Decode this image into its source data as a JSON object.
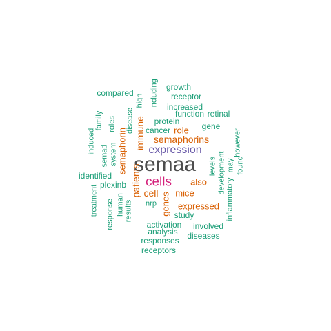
{
  "palette": {
    "grey": "#4d4d4d",
    "magenta": "#d4227c",
    "purple": "#6a5aa8",
    "orange": "#d95f02",
    "green": "#1b9e77"
  },
  "words": [
    {
      "text": "semaa",
      "color": "grey"
    },
    {
      "text": "cells",
      "color": "magenta"
    },
    {
      "text": "expression",
      "color": "purple"
    },
    {
      "text": "semaphorins",
      "color": "orange"
    },
    {
      "text": "patients",
      "color": "orange"
    },
    {
      "text": "immune",
      "color": "orange"
    },
    {
      "text": "semaphorin",
      "color": "orange"
    },
    {
      "text": "genes",
      "color": "orange"
    },
    {
      "text": "cell",
      "color": "orange"
    },
    {
      "text": "mice",
      "color": "orange"
    },
    {
      "text": "role",
      "color": "orange"
    },
    {
      "text": "also",
      "color": "orange"
    },
    {
      "text": "expressed",
      "color": "orange"
    },
    {
      "text": "growth",
      "color": "green"
    },
    {
      "text": "compared",
      "color": "green"
    },
    {
      "text": "receptor",
      "color": "green"
    },
    {
      "text": "including",
      "color": "green"
    },
    {
      "text": "high",
      "color": "green"
    },
    {
      "text": "increased",
      "color": "green"
    },
    {
      "text": "function",
      "color": "green"
    },
    {
      "text": "retinal",
      "color": "green"
    },
    {
      "text": "disease",
      "color": "green"
    },
    {
      "text": "family",
      "color": "green"
    },
    {
      "text": "roles",
      "color": "green"
    },
    {
      "text": "protein",
      "color": "green"
    },
    {
      "text": "gene",
      "color": "green"
    },
    {
      "text": "cancer",
      "color": "green"
    },
    {
      "text": "induced",
      "color": "green"
    },
    {
      "text": "system",
      "color": "green"
    },
    {
      "text": "semad",
      "color": "green"
    },
    {
      "text": "however",
      "color": "green"
    },
    {
      "text": "levels",
      "color": "green"
    },
    {
      "text": "development",
      "color": "green"
    },
    {
      "text": "found",
      "color": "green"
    },
    {
      "text": "may",
      "color": "green"
    },
    {
      "text": "identified",
      "color": "green"
    },
    {
      "text": "plexinb",
      "color": "green"
    },
    {
      "text": "inflammatory",
      "color": "green"
    },
    {
      "text": "treatment",
      "color": "green"
    },
    {
      "text": "response",
      "color": "green"
    },
    {
      "text": "human",
      "color": "green"
    },
    {
      "text": "results",
      "color": "green"
    },
    {
      "text": "nrp",
      "color": "green"
    },
    {
      "text": "study",
      "color": "green"
    },
    {
      "text": "activation",
      "color": "green"
    },
    {
      "text": "involved",
      "color": "green"
    },
    {
      "text": "analysis",
      "color": "green"
    },
    {
      "text": "diseases",
      "color": "green"
    },
    {
      "text": "responses",
      "color": "green"
    },
    {
      "text": "receptors",
      "color": "green"
    }
  ]
}
